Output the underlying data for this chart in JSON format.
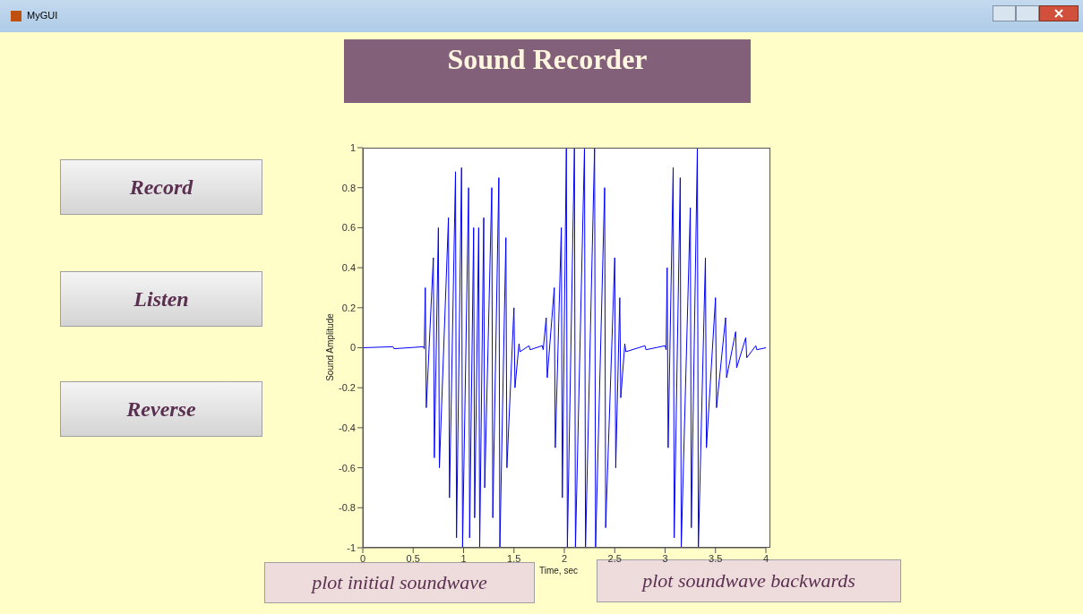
{
  "chart_data": {
    "type": "line",
    "title": "Sound Recorder",
    "xlabel": "Time, sec",
    "ylabel": "Sound Amplitude",
    "annotations": [
      "MyGUI",
      "Record",
      "Listen",
      "Reverse",
      "plot initial soundwave",
      "plot soundwave backwards"
    ],
    "xlim": [
      0,
      4
    ],
    "xticks": [
      0,
      0.5,
      1,
      1.5,
      2,
      2.5,
      3,
      3.5,
      4
    ],
    "ylim": [
      -1,
      1
    ],
    "yticks": [
      -1,
      -0.8,
      -0.6,
      -0.4,
      -0.2,
      0,
      0.2,
      0.4,
      0.6,
      0.8,
      1
    ],
    "series": [
      {
        "color": "#0000ff",
        "x": [
          0,
          0.3,
          0.31,
          0.6,
          0.61,
          0.62,
          0.63,
          0.7,
          0.71,
          0.75,
          0.76,
          0.85,
          0.86,
          0.92,
          0.93,
          0.98,
          0.99,
          1.05,
          1.06,
          1.1,
          1.11,
          1.15,
          1.16,
          1.2,
          1.21,
          1.28,
          1.29,
          1.35,
          1.36,
          1.42,
          1.43,
          1.5,
          1.51,
          1.55,
          1.56,
          1.65,
          1.66,
          1.78,
          1.79,
          1.82,
          1.83,
          1.9,
          1.91,
          1.97,
          1.98,
          2.02,
          2.03,
          2.1,
          2.11,
          2.2,
          2.21,
          2.3,
          2.31,
          2.4,
          2.41,
          2.5,
          2.51,
          2.55,
          2.56,
          2.6,
          2.61,
          2.8,
          2.81,
          3,
          3.01,
          3.02,
          3.03,
          3.08,
          3.09,
          3.15,
          3.16,
          3.25,
          3.26,
          3.32,
          3.33,
          3.4,
          3.41,
          3.5,
          3.51,
          3.6,
          3.61,
          3.7,
          3.71,
          3.8,
          3.81,
          3.9,
          3.91,
          4
        ],
        "values": [
          0,
          0.005,
          -0.005,
          0.005,
          -0.005,
          0.3,
          -0.3,
          0.45,
          -0.55,
          0.6,
          -0.6,
          0.65,
          -0.75,
          0.88,
          -0.95,
          0.9,
          -1,
          0.8,
          -0.95,
          0.6,
          -0.85,
          0.6,
          -1,
          0.65,
          -0.7,
          0.8,
          -0.85,
          0.85,
          -1,
          0.55,
          -0.6,
          0.2,
          -0.2,
          0.02,
          -0.02,
          0.01,
          -0.01,
          0.01,
          -0.01,
          0.15,
          -0.15,
          0.3,
          -0.5,
          0.6,
          -0.75,
          1,
          -1,
          1,
          -1,
          1,
          -1,
          1,
          -1,
          0.8,
          -0.9,
          0.45,
          -0.6,
          0.25,
          -0.25,
          0.02,
          -0.02,
          0.01,
          -0.01,
          0.01,
          -0.01,
          0.4,
          -0.5,
          0.9,
          -0.95,
          0.85,
          -1,
          0.7,
          -0.9,
          1,
          -1,
          0.45,
          -0.5,
          0.25,
          -0.3,
          0.15,
          -0.15,
          0.08,
          -0.1,
          0.05,
          -0.05,
          0.01,
          -0.01,
          0
        ]
      }
    ]
  }
}
